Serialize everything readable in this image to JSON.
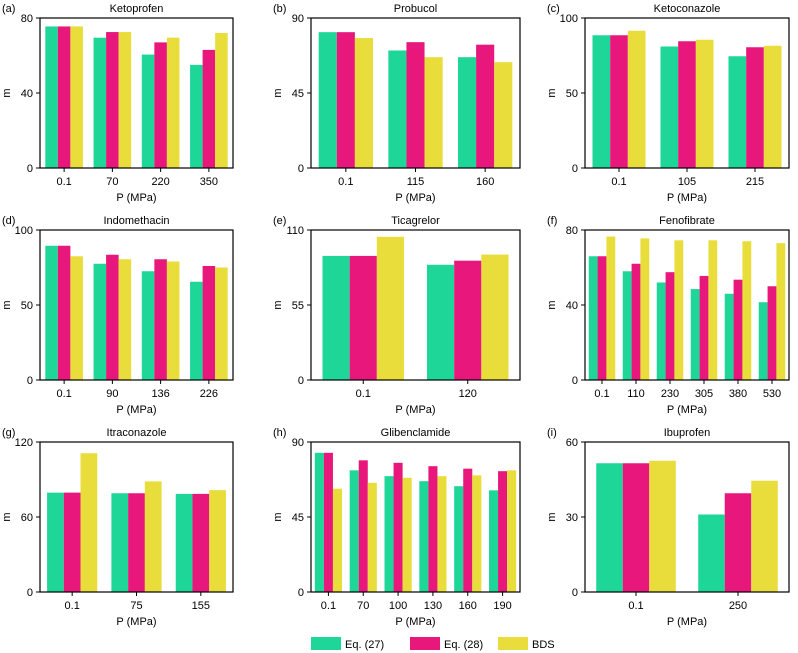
{
  "colors": {
    "eq27": "#1fd699",
    "eq28": "#e8177b",
    "bds": "#e8dd3a"
  },
  "legend": {
    "items": [
      "Eq. (27)",
      "Eq. (28)",
      "BDS"
    ]
  },
  "chart_data": [
    {
      "type": "bar",
      "panel": "(a)",
      "title": "Ketoprofen",
      "xlabel": "P (MPa)",
      "ylabel": "m",
      "categories": [
        "0.1",
        "70",
        "220",
        "350"
      ],
      "ylim": [
        0,
        80
      ],
      "yticks": [
        "0",
        "40",
        "80"
      ],
      "series": [
        {
          "name": "Eq. (27)",
          "values": [
            75.5,
            69.5,
            60.5,
            55.0
          ]
        },
        {
          "name": "Eq. (28)",
          "values": [
            75.5,
            72.5,
            67.0,
            63.0
          ]
        },
        {
          "name": "BDS",
          "values": [
            75.5,
            72.5,
            69.5,
            72.0
          ]
        }
      ]
    },
    {
      "type": "bar",
      "panel": "(b)",
      "title": "Probucol",
      "xlabel": "P (MPa)",
      "ylabel": "m",
      "categories": [
        "0.1",
        "115",
        "160"
      ],
      "ylim": [
        0,
        90
      ],
      "yticks": [
        "0",
        "45",
        "90"
      ],
      "series": [
        {
          "name": "Eq. (27)",
          "values": [
            81.5,
            70.5,
            66.5
          ]
        },
        {
          "name": "Eq. (28)",
          "values": [
            81.5,
            75.5,
            74.0
          ]
        },
        {
          "name": "BDS",
          "values": [
            78.0,
            66.5,
            63.5
          ]
        }
      ]
    },
    {
      "type": "bar",
      "panel": "(c)",
      "title": "Ketoconazole",
      "xlabel": "P (MPa)",
      "ylabel": "m",
      "categories": [
        "0.1",
        "105",
        "215"
      ],
      "ylim": [
        0,
        100
      ],
      "yticks": [
        "0",
        "50",
        "100"
      ],
      "series": [
        {
          "name": "Eq. (27)",
          "values": [
            88.5,
            81.0,
            74.5
          ]
        },
        {
          "name": "Eq. (28)",
          "values": [
            88.5,
            84.5,
            80.5
          ]
        },
        {
          "name": "BDS",
          "values": [
            91.5,
            85.5,
            81.5
          ]
        }
      ]
    },
    {
      "type": "bar",
      "panel": "(d)",
      "title": "Indomethacin",
      "xlabel": "P (MPa)",
      "ylabel": "m",
      "categories": [
        "0.1",
        "90",
        "136",
        "226"
      ],
      "ylim": [
        0,
        100
      ],
      "yticks": [
        "0",
        "50",
        "100"
      ],
      "series": [
        {
          "name": "Eq. (27)",
          "values": [
            89.5,
            77.5,
            72.5,
            65.5
          ]
        },
        {
          "name": "Eq. (28)",
          "values": [
            89.5,
            83.5,
            80.5,
            76.0
          ]
        },
        {
          "name": "BDS",
          "values": [
            82.5,
            80.5,
            79.0,
            75.0
          ]
        }
      ]
    },
    {
      "type": "bar",
      "panel": "(e)",
      "title": "Ticagrelor",
      "xlabel": "P (MPa)",
      "ylabel": "m",
      "categories": [
        "0.1",
        "120"
      ],
      "ylim": [
        0,
        110
      ],
      "yticks": [
        "0",
        "55",
        "110"
      ],
      "series": [
        {
          "name": "Eq. (27)",
          "values": [
            91.0,
            84.5
          ]
        },
        {
          "name": "Eq. (28)",
          "values": [
            91.0,
            87.5
          ]
        },
        {
          "name": "BDS",
          "values": [
            105.0,
            92.0
          ]
        }
      ]
    },
    {
      "type": "bar",
      "panel": "(f)",
      "title": "Fenofibrate",
      "xlabel": "P (MPa)",
      "ylabel": "m",
      "categories": [
        "0.1",
        "110",
        "230",
        "305",
        "380",
        "530"
      ],
      "ylim": [
        0,
        80
      ],
      "yticks": [
        "0",
        "40",
        "80"
      ],
      "series": [
        {
          "name": "Eq. (27)",
          "values": [
            66.0,
            58.0,
            52.0,
            48.5,
            46.0,
            41.5
          ]
        },
        {
          "name": "Eq. (28)",
          "values": [
            66.0,
            62.0,
            57.5,
            55.5,
            53.5,
            50.0
          ]
        },
        {
          "name": "BDS",
          "values": [
            76.5,
            75.5,
            74.5,
            74.5,
            74.0,
            73.0
          ]
        }
      ]
    },
    {
      "type": "bar",
      "panel": "(g)",
      "title": "Itraconazole",
      "xlabel": "P (MPa)",
      "ylabel": "m",
      "categories": [
        "0.1",
        "75",
        "155"
      ],
      "ylim": [
        0,
        120
      ],
      "yticks": [
        "0",
        "60",
        "120"
      ],
      "series": [
        {
          "name": "Eq. (27)",
          "values": [
            79.5,
            79.0,
            78.5
          ]
        },
        {
          "name": "Eq. (28)",
          "values": [
            79.5,
            79.0,
            78.5
          ]
        },
        {
          "name": "BDS",
          "values": [
            111.0,
            88.5,
            81.5
          ]
        }
      ]
    },
    {
      "type": "bar",
      "panel": "(h)",
      "title": "Glibenclamide",
      "xlabel": "P (MPa)",
      "ylabel": "m",
      "categories": [
        "0.1",
        "70",
        "100",
        "130",
        "160",
        "190"
      ],
      "ylim": [
        0,
        90
      ],
      "yticks": [
        "0",
        "45",
        "90"
      ],
      "series": [
        {
          "name": "Eq. (27)",
          "values": [
            83.5,
            73.0,
            69.5,
            66.5,
            63.5,
            61.0
          ]
        },
        {
          "name": "Eq. (28)",
          "values": [
            83.5,
            79.0,
            77.5,
            75.5,
            74.0,
            72.5
          ]
        },
        {
          "name": "BDS",
          "values": [
            62.0,
            65.5,
            68.5,
            69.5,
            70.0,
            73.0
          ]
        }
      ]
    },
    {
      "type": "bar",
      "panel": "(i)",
      "title": "Ibuprofen",
      "xlabel": "P (MPa)",
      "ylabel": "m",
      "categories": [
        "0.1",
        "250"
      ],
      "ylim": [
        0,
        60
      ],
      "yticks": [
        "0",
        "30",
        "60"
      ],
      "series": [
        {
          "name": "Eq. (27)",
          "values": [
            51.5,
            31.0
          ]
        },
        {
          "name": "Eq. (28)",
          "values": [
            51.5,
            39.5
          ]
        },
        {
          "name": "BDS",
          "values": [
            52.5,
            44.5
          ]
        }
      ]
    }
  ]
}
